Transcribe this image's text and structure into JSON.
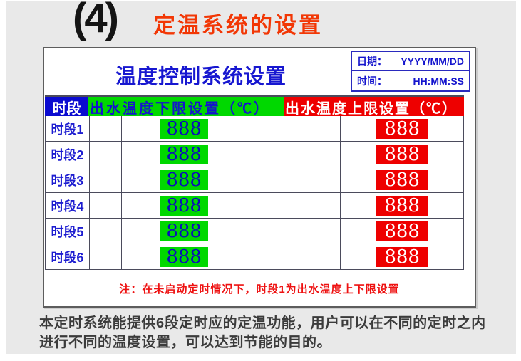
{
  "page_header": {
    "number": "(4)",
    "title": "定温系统的设置"
  },
  "panel": {
    "title": "温度控制系统设置",
    "datetime": {
      "date_label": "日期：",
      "date_value": "YYYY/MM/DD",
      "time_label": "时间：",
      "time_value": "HH:MM:SS"
    },
    "table": {
      "headers": {
        "period": "时段",
        "low": "出水温度下限设置（℃）",
        "high": "出水温度上限设置（℃）"
      },
      "rows": [
        {
          "label": "时段1",
          "low": "888",
          "high": "888"
        },
        {
          "label": "时段2",
          "low": "888",
          "high": "888"
        },
        {
          "label": "时段3",
          "low": "888",
          "high": "888"
        },
        {
          "label": "时段4",
          "low": "888",
          "high": "888"
        },
        {
          "label": "时段5",
          "low": "888",
          "high": "888"
        },
        {
          "label": "时段6",
          "low": "888",
          "high": "888"
        }
      ]
    },
    "note": "注：在未启动定时情况下，时段1为出水温度上下限设置"
  },
  "footer": {
    "description": "本定时系统能提供6段定时应的定温功能，用户可以在不同的定时之内进行不同的温度设置，可以达到节能的目的。"
  },
  "colors": {
    "accent_blue": "#1414cd",
    "header_blue_bg": "#0b0bd0",
    "green": "#00d800",
    "red": "#ee0000",
    "title_red": "#f23705",
    "note_red": "#ee1111",
    "background_gray": "#e9e9e9"
  }
}
